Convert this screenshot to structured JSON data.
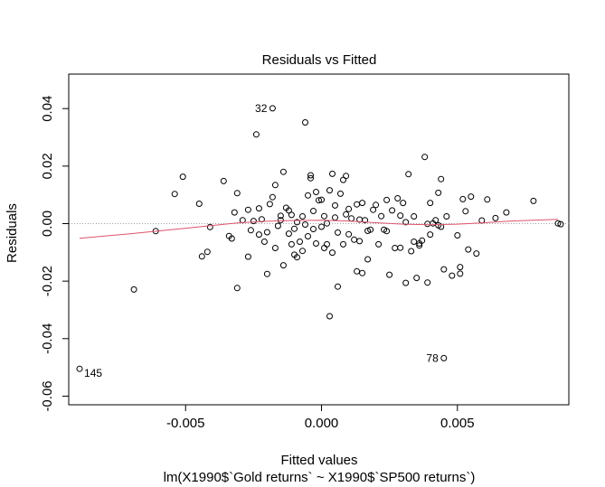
{
  "chart_data": {
    "type": "scatter",
    "title": "Residuals vs Fitted",
    "xlabel": "Fitted values",
    "xlabel2": "lm(X1990$`Gold returns` ~ X1990$`SP500 returns`)",
    "ylabel": "Residuals",
    "xlim": [
      -0.0093,
      0.0091
    ],
    "ylim": [
      -0.063,
      0.052
    ],
    "x_ticks": [
      -0.005,
      0.0,
      0.005
    ],
    "x_tick_labels": [
      "-0.005",
      "0.000",
      "0.005"
    ],
    "y_ticks": [
      -0.06,
      -0.04,
      -0.02,
      0.0,
      0.02,
      0.04
    ],
    "y_tick_labels": [
      "-0.06",
      "-0.04",
      "-0.02",
      "0.00",
      "0.02",
      "0.04"
    ],
    "reference_line_y": 0.0,
    "grid": false,
    "colors": {
      "points": "#000000",
      "smooth": "#df536b",
      "reference": "#a0a0a0"
    },
    "outlier_labels": [
      {
        "text": "32",
        "x": -0.0018,
        "y": 0.0401
      },
      {
        "text": "145",
        "x": -0.0089,
        "y": -0.0505
      },
      {
        "text": "78",
        "x": 0.0045,
        "y": -0.0468
      }
    ],
    "smooth": {
      "x": [
        -0.0089,
        -0.007,
        -0.005,
        -0.003,
        -0.002,
        -0.001,
        0.0,
        0.001,
        0.002,
        0.003,
        0.004,
        0.005,
        0.006,
        0.007,
        0.0087
      ],
      "y": [
        -0.0051,
        -0.0035,
        -0.0016,
        0.0003,
        0.0008,
        0.0011,
        0.0012,
        0.0009,
        0.0003,
        -0.0002,
        -0.0004,
        -0.0002,
        0.0003,
        0.0009,
        0.0015
      ]
    },
    "points": [
      [
        -0.0089,
        -0.0505
      ],
      [
        -0.0069,
        -0.0229
      ],
      [
        -0.0061,
        -0.0026
      ],
      [
        -0.0054,
        0.0103
      ],
      [
        -0.0051,
        0.0163
      ],
      [
        -0.0045,
        0.0069
      ],
      [
        -0.0044,
        -0.0114
      ],
      [
        -0.0042,
        -0.0098
      ],
      [
        -0.0041,
        -0.0012
      ],
      [
        -0.0036,
        0.0148
      ],
      [
        -0.0034,
        -0.0043
      ],
      [
        -0.0033,
        -0.0052
      ],
      [
        -0.0032,
        0.0039
      ],
      [
        -0.0031,
        -0.0224
      ],
      [
        -0.0031,
        0.0106
      ],
      [
        -0.0029,
        0.0012
      ],
      [
        -0.0027,
        -0.0115
      ],
      [
        -0.0027,
        0.0048
      ],
      [
        -0.0026,
        -0.0023
      ],
      [
        -0.0025,
        0.0009
      ],
      [
        -0.0024,
        0.031
      ],
      [
        -0.0023,
        0.0053
      ],
      [
        -0.0023,
        -0.0038
      ],
      [
        -0.0022,
        0.0015
      ],
      [
        -0.0021,
        -0.0063
      ],
      [
        -0.002,
        -0.003
      ],
      [
        -0.002,
        -0.0175
      ],
      [
        -0.0019,
        0.0068
      ],
      [
        -0.0018,
        0.0401
      ],
      [
        -0.0018,
        0.0092
      ],
      [
        -0.0017,
        -0.0085
      ],
      [
        -0.0017,
        0.0134
      ],
      [
        -0.0016,
        -0.0008
      ],
      [
        -0.0015,
        0.0012
      ],
      [
        -0.0015,
        0.0027
      ],
      [
        -0.0014,
        0.018
      ],
      [
        -0.0014,
        -0.0145
      ],
      [
        -0.0013,
        0.0055
      ],
      [
        -0.0012,
        0.0046
      ],
      [
        -0.0012,
        -0.0035
      ],
      [
        -0.0011,
        -0.0072
      ],
      [
        -0.0011,
        0.003
      ],
      [
        -0.001,
        -0.0108
      ],
      [
        -0.001,
        -0.0018
      ],
      [
        -0.0009,
        -0.0117
      ],
      [
        -0.0009,
        0.0005
      ],
      [
        -0.0008,
        -0.0063
      ],
      [
        -0.0007,
        0.0025
      ],
      [
        -0.0007,
        -0.0095
      ],
      [
        -0.0006,
        0.0352
      ],
      [
        -0.0006,
        -0.0003
      ],
      [
        -0.0005,
        0.0098
      ],
      [
        -0.0005,
        -0.0044
      ],
      [
        -0.0004,
        0.0158
      ],
      [
        -0.0004,
        0.0168
      ],
      [
        -0.0003,
        0.0044
      ],
      [
        -0.0003,
        -0.0019
      ],
      [
        -0.0002,
        0.011
      ],
      [
        -0.0002,
        -0.0069
      ],
      [
        -0.0001,
        0.0081
      ],
      [
        0.0,
        -0.0011
      ],
      [
        0.0,
        0.0083
      ],
      [
        0.0001,
        -0.0085
      ],
      [
        0.0001,
        0.0026
      ],
      [
        0.0002,
        -0.0072
      ],
      [
        0.0002,
        0.0001
      ],
      [
        0.0003,
        -0.0322
      ],
      [
        0.0003,
        0.0116
      ],
      [
        0.0004,
        0.0173
      ],
      [
        0.0004,
        -0.0101
      ],
      [
        0.0005,
        0.0063
      ],
      [
        0.0005,
        0.0021
      ],
      [
        0.0006,
        -0.0219
      ],
      [
        0.0006,
        -0.0031
      ],
      [
        0.0007,
        0.0104
      ],
      [
        0.0008,
        0.0152
      ],
      [
        0.0008,
        -0.0072
      ],
      [
        0.0009,
        0.0166
      ],
      [
        0.0009,
        0.0032
      ],
      [
        0.001,
        0.0051
      ],
      [
        0.001,
        -0.0037
      ],
      [
        0.0011,
        0.0018
      ],
      [
        0.0012,
        -0.0056
      ],
      [
        0.0013,
        -0.0166
      ],
      [
        0.0013,
        0.0067
      ],
      [
        0.0014,
        -0.0061
      ],
      [
        0.0014,
        0.0014
      ],
      [
        0.0015,
        -0.0172
      ],
      [
        0.0015,
        0.0072
      ],
      [
        0.0016,
        0.0012
      ],
      [
        0.0017,
        -0.0025
      ],
      [
        0.0017,
        -0.0124
      ],
      [
        0.0018,
        -0.0021
      ],
      [
        0.0019,
        0.0048
      ],
      [
        0.002,
        0.0065
      ],
      [
        0.0021,
        -0.0072
      ],
      [
        0.0022,
        0.0026
      ],
      [
        0.0023,
        -0.0021
      ],
      [
        0.0024,
        -0.0026
      ],
      [
        0.0024,
        0.0082
      ],
      [
        0.0025,
        -0.0178
      ],
      [
        0.0026,
        0.0046
      ],
      [
        0.0027,
        -0.0085
      ],
      [
        0.0028,
        0.0088
      ],
      [
        0.0029,
        0.0028
      ],
      [
        0.0029,
        -0.0084
      ],
      [
        0.003,
        0.0072
      ],
      [
        0.0031,
        0.0005
      ],
      [
        0.0031,
        -0.0206
      ],
      [
        0.0032,
        0.0172
      ],
      [
        0.0033,
        -0.0096
      ],
      [
        0.0034,
        0.0025
      ],
      [
        0.0034,
        -0.0063
      ],
      [
        0.0035,
        -0.0189
      ],
      [
        0.0036,
        -0.0076
      ],
      [
        0.0036,
        -0.0069
      ],
      [
        0.0037,
        -0.0059
      ],
      [
        0.0038,
        0.0232
      ],
      [
        0.0039,
        -0.0205
      ],
      [
        0.0039,
        -0.0001
      ],
      [
        0.004,
        0.0072
      ],
      [
        0.004,
        -0.0038
      ],
      [
        0.0041,
        0.0001
      ],
      [
        0.0042,
        0.0012
      ],
      [
        0.0043,
        -0.0006
      ],
      [
        0.0043,
        0.0107
      ],
      [
        0.0044,
        -0.0011
      ],
      [
        0.0044,
        0.0155
      ],
      [
        0.0045,
        -0.0159
      ],
      [
        0.0045,
        -0.0468
      ],
      [
        0.0046,
        0.0025
      ],
      [
        0.0048,
        -0.0181
      ],
      [
        0.005,
        -0.0041
      ],
      [
        0.0051,
        -0.0174
      ],
      [
        0.0051,
        -0.0151
      ],
      [
        0.0052,
        0.0085
      ],
      [
        0.0053,
        0.0043
      ],
      [
        0.0054,
        -0.009
      ],
      [
        0.0055,
        0.0094
      ],
      [
        0.0057,
        -0.0104
      ],
      [
        0.0059,
        0.0011
      ],
      [
        0.0061,
        0.0084
      ],
      [
        0.0064,
        0.0019
      ],
      [
        0.0068,
        0.0039
      ],
      [
        0.0078,
        0.0079
      ],
      [
        0.0087,
        0.0001
      ],
      [
        0.0088,
        -0.0002
      ]
    ]
  }
}
